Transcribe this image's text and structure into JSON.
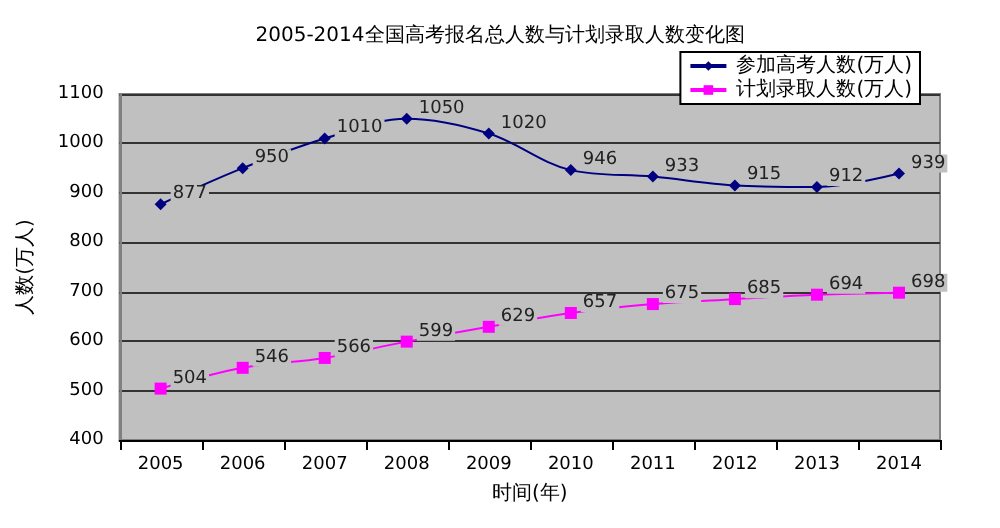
{
  "chart_data": {
    "type": "line",
    "title": "2005-2014全国高考报名总人数与计划录取人数变化图",
    "xlabel": "时间(年)",
    "ylabel": "人数(万人)",
    "categories": [
      "2005",
      "2006",
      "2007",
      "2008",
      "2009",
      "2010",
      "2011",
      "2012",
      "2013",
      "2014"
    ],
    "series": [
      {
        "name": "参加高考人数(万人)",
        "color": "#000080",
        "marker": "diamond",
        "values": [
          877,
          950,
          1010,
          1050,
          1020,
          946,
          933,
          915,
          912,
          939
        ]
      },
      {
        "name": "计划录取人数(万人)",
        "color": "#ff00ff",
        "marker": "square",
        "values": [
          504,
          546,
          566,
          599,
          629,
          657,
          675,
          685,
          694,
          698
        ]
      }
    ],
    "ylim": [
      400,
      1100
    ],
    "yticks": [
      400,
      500,
      600,
      700,
      800,
      900,
      1000,
      1100
    ],
    "grid": "y",
    "legend": "top right",
    "data_labels": true
  }
}
